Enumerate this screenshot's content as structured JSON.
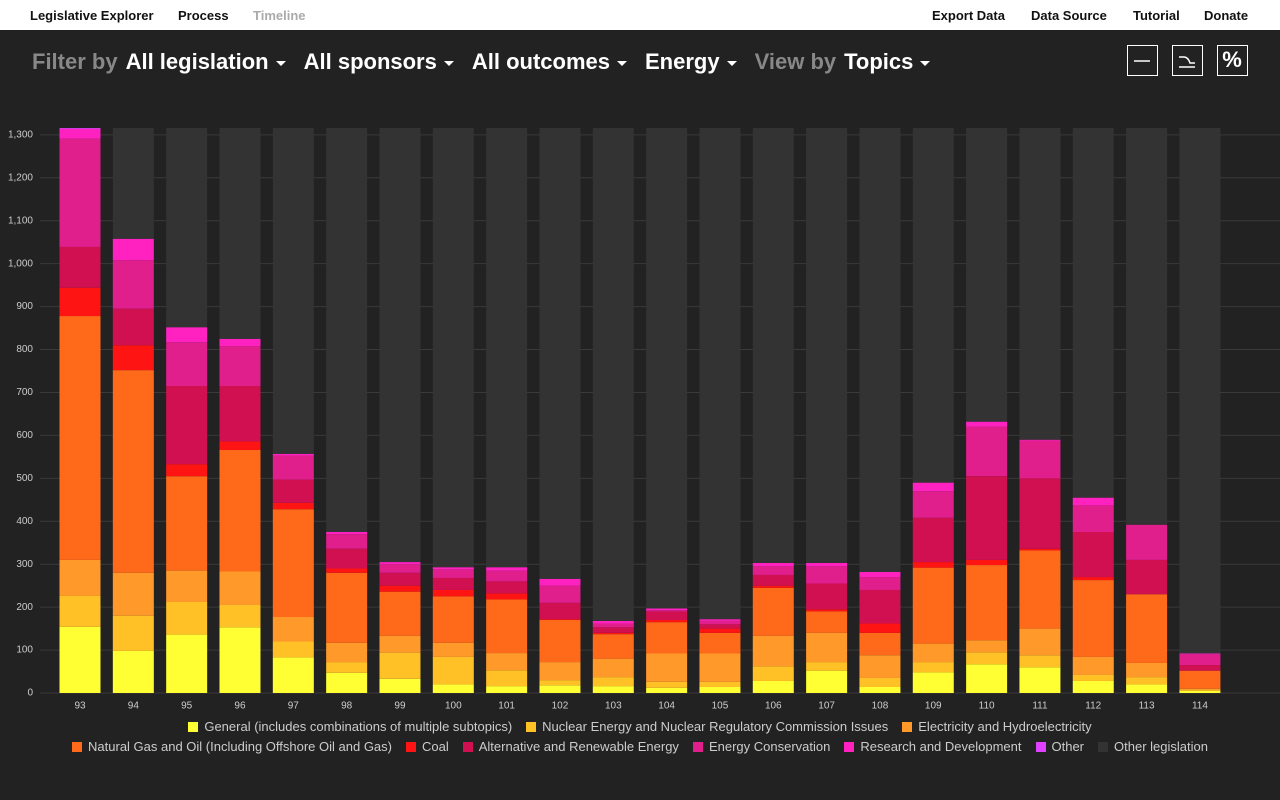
{
  "nav": [
    "Legislative Explorer",
    "Process",
    "Timeline",
    "Export Data",
    "Data Source",
    "Tutorial",
    "Donate"
  ],
  "filters": {
    "label": "Filter by",
    "options": [
      "All legislation",
      "All sponsors",
      "All outcomes",
      "Energy"
    ],
    "view_label": "View by",
    "view": "Topics"
  },
  "chart_data": {
    "type": "stacked-bar",
    "categories": [
      "93",
      "94",
      "95",
      "96",
      "97",
      "98",
      "99",
      "100",
      "101",
      "102",
      "103",
      "104",
      "105",
      "106",
      "107",
      "108",
      "109",
      "110",
      "111",
      "112",
      "113",
      "114"
    ],
    "ylim": [
      0,
      1316
    ],
    "yticks": [
      0,
      100,
      200,
      300,
      400,
      500,
      600,
      700,
      800,
      900,
      {
        "value": 1000,
        "label": "1,000"
      },
      {
        "value": 1100,
        "label": "1,100"
      },
      {
        "value": 1200,
        "label": "1,200"
      },
      {
        "value": 1300,
        "label": "1,300"
      }
    ],
    "grid": true,
    "series": [
      {
        "name": "General (includes combinations of multiple subtopics)",
        "color": "#ffff33",
        "values": [
          154,
          98,
          136,
          153,
          83,
          47,
          33,
          20,
          16,
          18,
          16,
          12,
          14,
          28,
          52,
          14,
          48,
          67,
          60,
          28,
          20,
          5
        ]
      },
      {
        "name": "Nuclear Energy and Nuclear Regulatory Commission Issues",
        "color": "#ffc125",
        "values": [
          72,
          82,
          76,
          52,
          37,
          25,
          61,
          64,
          37,
          12,
          21,
          14,
          12,
          34,
          20,
          21,
          24,
          28,
          28,
          14,
          17,
          3
        ]
      },
      {
        "name": "Electricity and Hydroelectricity",
        "color": "#ff9a2a",
        "values": [
          84,
          100,
          73,
          78,
          57,
          45,
          39,
          33,
          40,
          42,
          43,
          66,
          66,
          71,
          68,
          53,
          43,
          28,
          62,
          42,
          33,
          2
        ]
      },
      {
        "name": "Natural Gas and Oil (Including Offshore Oil and Gas)",
        "color": "#ff6a1a",
        "values": [
          568,
          472,
          220,
          283,
          251,
          163,
          103,
          108,
          125,
          98,
          57,
          73,
          48,
          112,
          50,
          52,
          177,
          175,
          182,
          179,
          160,
          42
        ]
      },
      {
        "name": "Coal",
        "color": "#ff1414",
        "values": [
          66,
          58,
          28,
          20,
          15,
          10,
          14,
          15,
          14,
          2,
          3,
          5,
          10,
          5,
          5,
          22,
          13,
          12,
          4,
          7,
          0,
          0
        ]
      },
      {
        "name": "Alternative and Renewable Energy",
        "color": "#d01050",
        "values": [
          95,
          85,
          182,
          129,
          54,
          46,
          30,
          28,
          28,
          38,
          13,
          20,
          10,
          25,
          60,
          78,
          103,
          195,
          164,
          105,
          80,
          13
        ]
      },
      {
        "name": "Energy Conservation",
        "color": "#e01e8c",
        "values": [
          252,
          113,
          102,
          93,
          56,
          34,
          20,
          20,
          25,
          40,
          9,
          3,
          8,
          20,
          40,
          30,
          62,
          115,
          88,
          62,
          82,
          25
        ]
      },
      {
        "name": "Research and Development",
        "color": "#ff22c0",
        "values": [
          23,
          50,
          35,
          17,
          4,
          5,
          5,
          5,
          8,
          16,
          6,
          4,
          4,
          8,
          8,
          12,
          20,
          12,
          2,
          18,
          0,
          2
        ]
      },
      {
        "name": "Other",
        "color": "#e040ff",
        "values": [
          2,
          0,
          0,
          0,
          0,
          0,
          0,
          0,
          0,
          0,
          0,
          0,
          0,
          0,
          0,
          0,
          0,
          0,
          0,
          0,
          0,
          0
        ]
      },
      {
        "name": "Other legislation",
        "color": "#333333",
        "values": [
          0,
          258,
          464,
          491,
          759,
          941,
          1011,
          1023,
          1023,
          1050,
          1148,
          1119,
          1144,
          1013,
          1013,
          1034,
          826,
          684,
          726,
          861,
          924,
          1224
        ]
      }
    ]
  }
}
